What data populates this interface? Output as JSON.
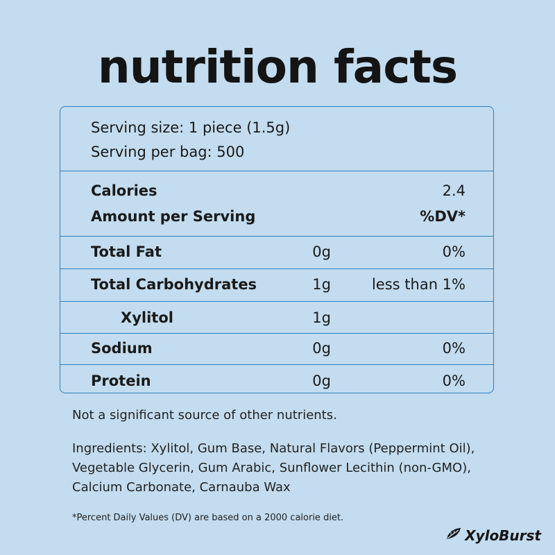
{
  "title": "nutrition facts",
  "serving": {
    "size": "Serving size: 1 piece (1.5g)",
    "per_bag": "Serving per bag: 500"
  },
  "calories": {
    "label": "Calories",
    "value": "2.4"
  },
  "amount": {
    "label": "Amount per Serving",
    "dv_header": "%DV*"
  },
  "rows": [
    {
      "label": "Total Fat",
      "amount": "0g",
      "dv": "0%"
    },
    {
      "label": "Total Carbohydrates",
      "amount": "1g",
      "dv": "less than 1%"
    },
    {
      "label": "Xylitol",
      "amount": "1g",
      "dv": ""
    },
    {
      "label": "Sodium",
      "amount": "0g",
      "dv": "0%"
    },
    {
      "label": "Protein",
      "amount": "0g",
      "dv": "0%"
    }
  ],
  "footer": {
    "not_significant": "Not a significant source of other nutrients.",
    "ingredients_lines": [
      "Ingredients: Xylitol, Gum Base, Natural Flavors (Peppermint Oil),",
      "Vegetable Glycerin, Gum Arabic, Sunflower Lecithin (non-GMO),",
      "Calcium Carbonate, Carnauba Wax"
    ],
    "note": "*Percent Daily Values (DV) are based on a 2000 calorie diet."
  },
  "brand": {
    "name": "XyloBurst",
    "icon": "leaf-icon"
  },
  "colors": {
    "background": "#c3dcef",
    "border": "#2e7fbe",
    "text": "#1a1a1a"
  }
}
